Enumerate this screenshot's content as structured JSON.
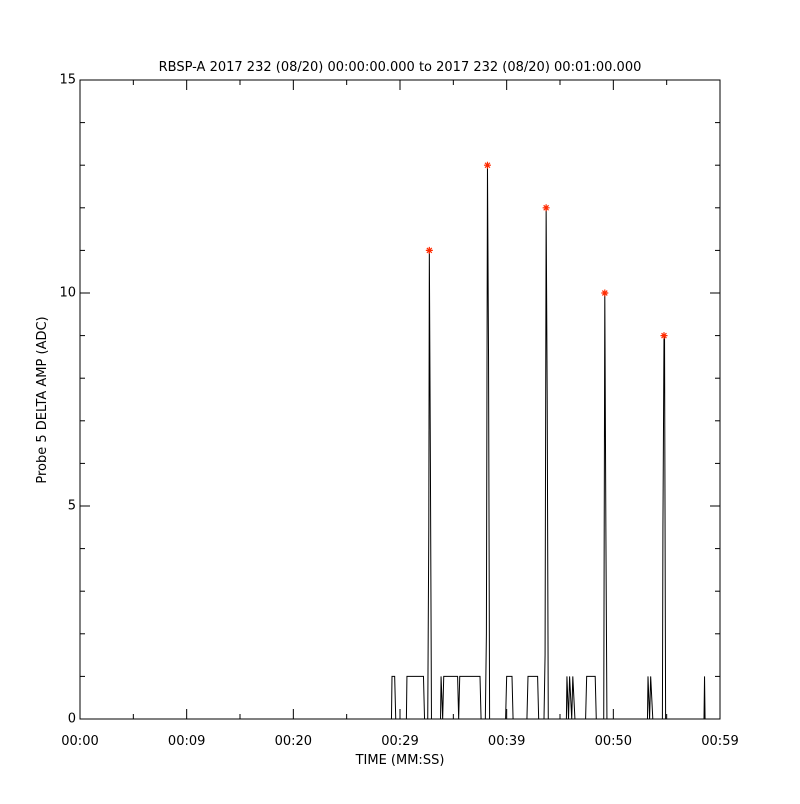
{
  "chart_data": {
    "type": "line",
    "title": "RBSP-A 2017 232 (08/20) 00:00:00.000 to 2017 232 (08/20) 00:01:00.000",
    "xlabel": "TIME (MM:SS)",
    "ylabel": "Probe 5 DELTA AMP (ADC)",
    "xlim": [
      0,
      60
    ],
    "ylim": [
      0,
      15
    ],
    "xticks": [
      {
        "value": 0,
        "label": "00:00"
      },
      {
        "value": 10,
        "label": "00:09"
      },
      {
        "value": 20,
        "label": "00:20"
      },
      {
        "value": 30,
        "label": "00:29"
      },
      {
        "value": 40,
        "label": "00:39"
      },
      {
        "value": 50,
        "label": "00:50"
      },
      {
        "value": 60,
        "label": "00:59"
      }
    ],
    "xminorticks": [
      5,
      15,
      25,
      35,
      45,
      55
    ],
    "yticks": [
      0,
      5,
      10,
      15
    ],
    "yminorticks": [
      1,
      2,
      3,
      4,
      6,
      7,
      8,
      9,
      11,
      12,
      13,
      14
    ],
    "series": [
      {
        "color": "#000000",
        "line": true,
        "x": [
          0,
          29.2,
          29.25,
          29.5,
          29.6,
          30.6,
          30.65,
          32.2,
          32.3,
          32.6,
          32.7,
          32.75,
          32.85,
          32.95,
          33.8,
          33.85,
          34.0,
          34.1,
          35.4,
          35.5,
          35.6,
          37.5,
          37.6,
          38.0,
          38.1,
          38.2,
          38.3,
          38.4,
          39.9,
          40.0,
          40.5,
          40.6,
          41.9,
          42.0,
          42.9,
          43.0,
          43.5,
          43.6,
          43.7,
          43.8,
          43.9,
          45.6,
          45.65,
          45.8,
          45.9,
          46.1,
          46.2,
          46.4,
          47.4,
          47.5,
          48.3,
          48.4,
          49.1,
          49.15,
          49.2,
          49.3,
          49.4,
          53.2,
          53.25,
          53.4,
          53.5,
          53.7,
          54.6,
          54.65,
          54.75,
          54.8,
          54.9,
          58.5,
          58.55,
          58.6,
          59.9
        ],
        "values": [
          0,
          0,
          1,
          1,
          0,
          0,
          1,
          1,
          0,
          0,
          4.5,
          11,
          6,
          0,
          0,
          1,
          0,
          1,
          1,
          0,
          1,
          1,
          0,
          0,
          2,
          13,
          8.5,
          0,
          0,
          1,
          1,
          0,
          0,
          1,
          1,
          0,
          0,
          1.5,
          12,
          7.5,
          0,
          0,
          1,
          0,
          1,
          0,
          1,
          0,
          0,
          1,
          1,
          0,
          0,
          5,
          10,
          4.5,
          0,
          0,
          1,
          0,
          1,
          0,
          0,
          4.5,
          9,
          9,
          0,
          0,
          1,
          0,
          0
        ]
      },
      {
        "color": "#ff2a00",
        "line": false,
        "marker": "asterisk",
        "x": [
          32.75,
          38.2,
          43.7,
          49.2,
          54.75
        ],
        "values": [
          11,
          13,
          12,
          10,
          9
        ]
      }
    ]
  }
}
